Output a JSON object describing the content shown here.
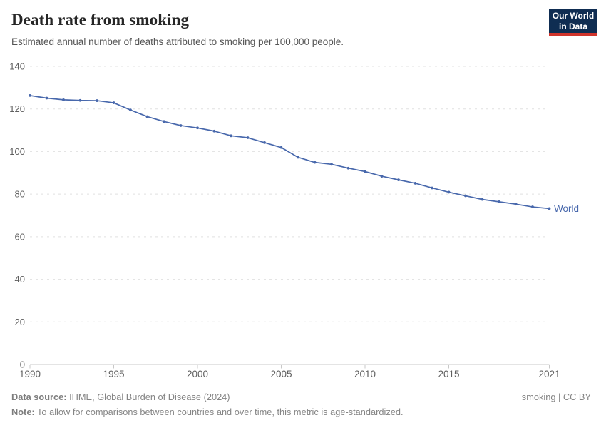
{
  "header": {
    "title": "Death rate from smoking",
    "subtitle": "Estimated annual number of deaths attributed to smoking per 100,000 people.",
    "logo": {
      "line1": "Our World",
      "line2": "in Data",
      "bg_color": "#0f2d52",
      "stripe_color": "#d0342c"
    }
  },
  "chart_data": {
    "type": "line",
    "title": "Death rate from smoking",
    "subtitle": "Estimated annual number of deaths attributed to smoking per 100,000 people.",
    "xlabel": "",
    "ylabel": "",
    "xlim": [
      1990,
      2021
    ],
    "ylim": [
      0,
      140
    ],
    "x_ticks": [
      1990,
      1995,
      2000,
      2005,
      2010,
      2015,
      2021
    ],
    "y_ticks": [
      0,
      20,
      40,
      60,
      80,
      100,
      120,
      140
    ],
    "grid": "horizontal-dashed",
    "legend_position": "end-of-line-label",
    "x": [
      1990,
      1991,
      1992,
      1993,
      1994,
      1995,
      1996,
      1997,
      1998,
      1999,
      2000,
      2001,
      2002,
      2003,
      2004,
      2005,
      2006,
      2007,
      2008,
      2009,
      2010,
      2011,
      2012,
      2013,
      2014,
      2015,
      2016,
      2017,
      2018,
      2019,
      2020,
      2021
    ],
    "series": [
      {
        "name": "World",
        "color": "#4868ac",
        "values": [
          126.3,
          125.1,
          124.3,
          124.0,
          123.9,
          122.9,
          119.5,
          116.4,
          114.1,
          112.2,
          111.1,
          109.6,
          107.4,
          106.5,
          104.2,
          101.9,
          97.3,
          94.9,
          94.0,
          92.2,
          90.6,
          88.4,
          86.7,
          85.1,
          82.9,
          80.9,
          79.2,
          77.5,
          76.4,
          75.3,
          74.0,
          73.2
        ]
      }
    ],
    "colors": {
      "grid": "#e0e0e0",
      "axis": "#c8c8c8",
      "tick_label": "#5e5e5e",
      "series_world": "#4868ac"
    }
  },
  "footer": {
    "data_source_label": "Data source:",
    "data_source_text": " IHME, Global Burden of Disease (2024)",
    "note_label": "Note:",
    "note_text": " To allow for comparisons between countries and over time, this metric is age-standardized.",
    "license_text": "smoking | CC BY"
  }
}
